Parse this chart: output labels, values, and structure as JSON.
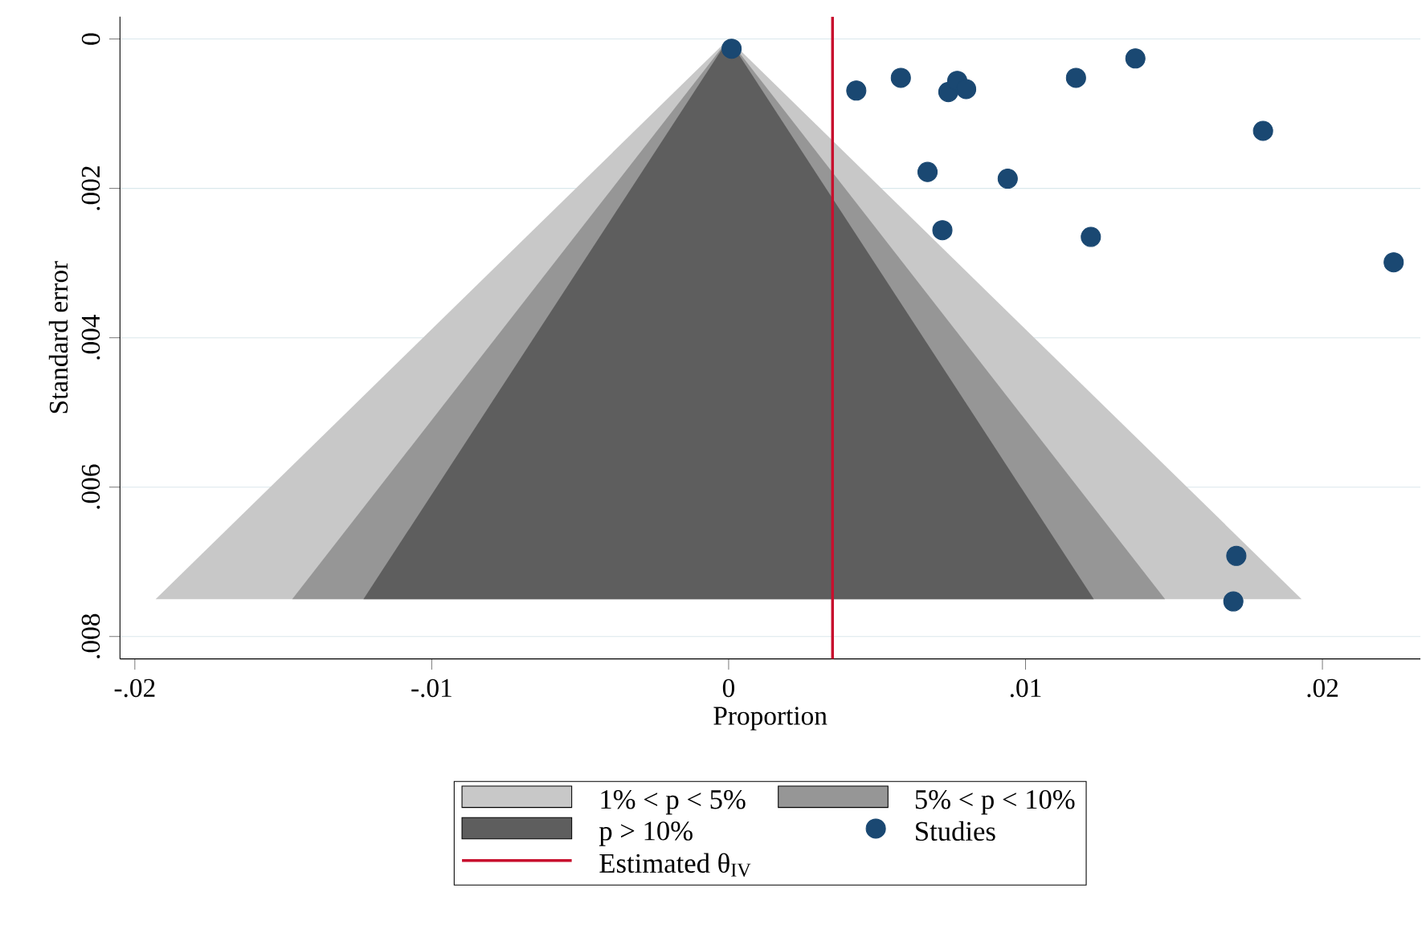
{
  "chart_data": {
    "type": "area",
    "xlabel": "Proportion",
    "ylabel": "Standard error",
    "xlim": [
      -0.0205,
      0.0233
    ],
    "ylim": [
      0.0083,
      -0.0003
    ],
    "xticks": [
      {
        "value": -0.02,
        "label": "-.02"
      },
      {
        "value": -0.01,
        "label": "-.01"
      },
      0,
      {
        "value": 0.01,
        "label": ".01"
      },
      {
        "value": 0.02,
        "label": ".02"
      }
    ],
    "yticks": [
      0,
      {
        "value": 0.002,
        "label": ".002"
      },
      {
        "value": 0.004,
        "label": ".004"
      },
      {
        "value": 0.006,
        "label": ".006"
      },
      {
        "value": 0.008,
        "label": ".008"
      }
    ],
    "grid": "y",
    "legend": "bottom",
    "series": [
      {
        "name": "1% < p < 5%",
        "color": "#c8c8c8",
        "x": [
          -0.0193,
          0,
          0.0193
        ],
        "values": [
          0.0075,
          0,
          0.0075
        ]
      },
      {
        "name": "5% < p < 10%",
        "color": "#969696",
        "x": [
          -0.0147,
          0,
          0.0147
        ],
        "values": [
          0.0075,
          0,
          0.0075
        ]
      },
      {
        "name": "p > 10%",
        "color": "#5e5e5e",
        "x": [
          -0.0123,
          0,
          0.0123
        ],
        "values": [
          0.0075,
          0,
          0.0075
        ]
      },
      {
        "name": "Studies",
        "type": "scatter",
        "marker": "circle",
        "color": "#1a4872",
        "x": [
          0.0001,
          0.0043,
          0.0058,
          0.0074,
          0.0077,
          0.008,
          0.0117,
          0.0137,
          0.018,
          0.0067,
          0.0094,
          0.0072,
          0.0122,
          0.0224,
          0.0171,
          0.017
        ],
        "values": [
          0.00013,
          0.00069,
          0.00052,
          0.00071,
          0.00056,
          0.00067,
          0.00052,
          0.00026,
          0.00123,
          0.00178,
          0.00187,
          0.00256,
          0.00265,
          0.00299,
          0.00692,
          0.00753
        ]
      }
    ],
    "ref_lines": [
      {
        "axis": "x",
        "value": 0.0035,
        "label": "Estimated θ$_{IV}$",
        "color": "#c8102e"
      }
    ]
  }
}
